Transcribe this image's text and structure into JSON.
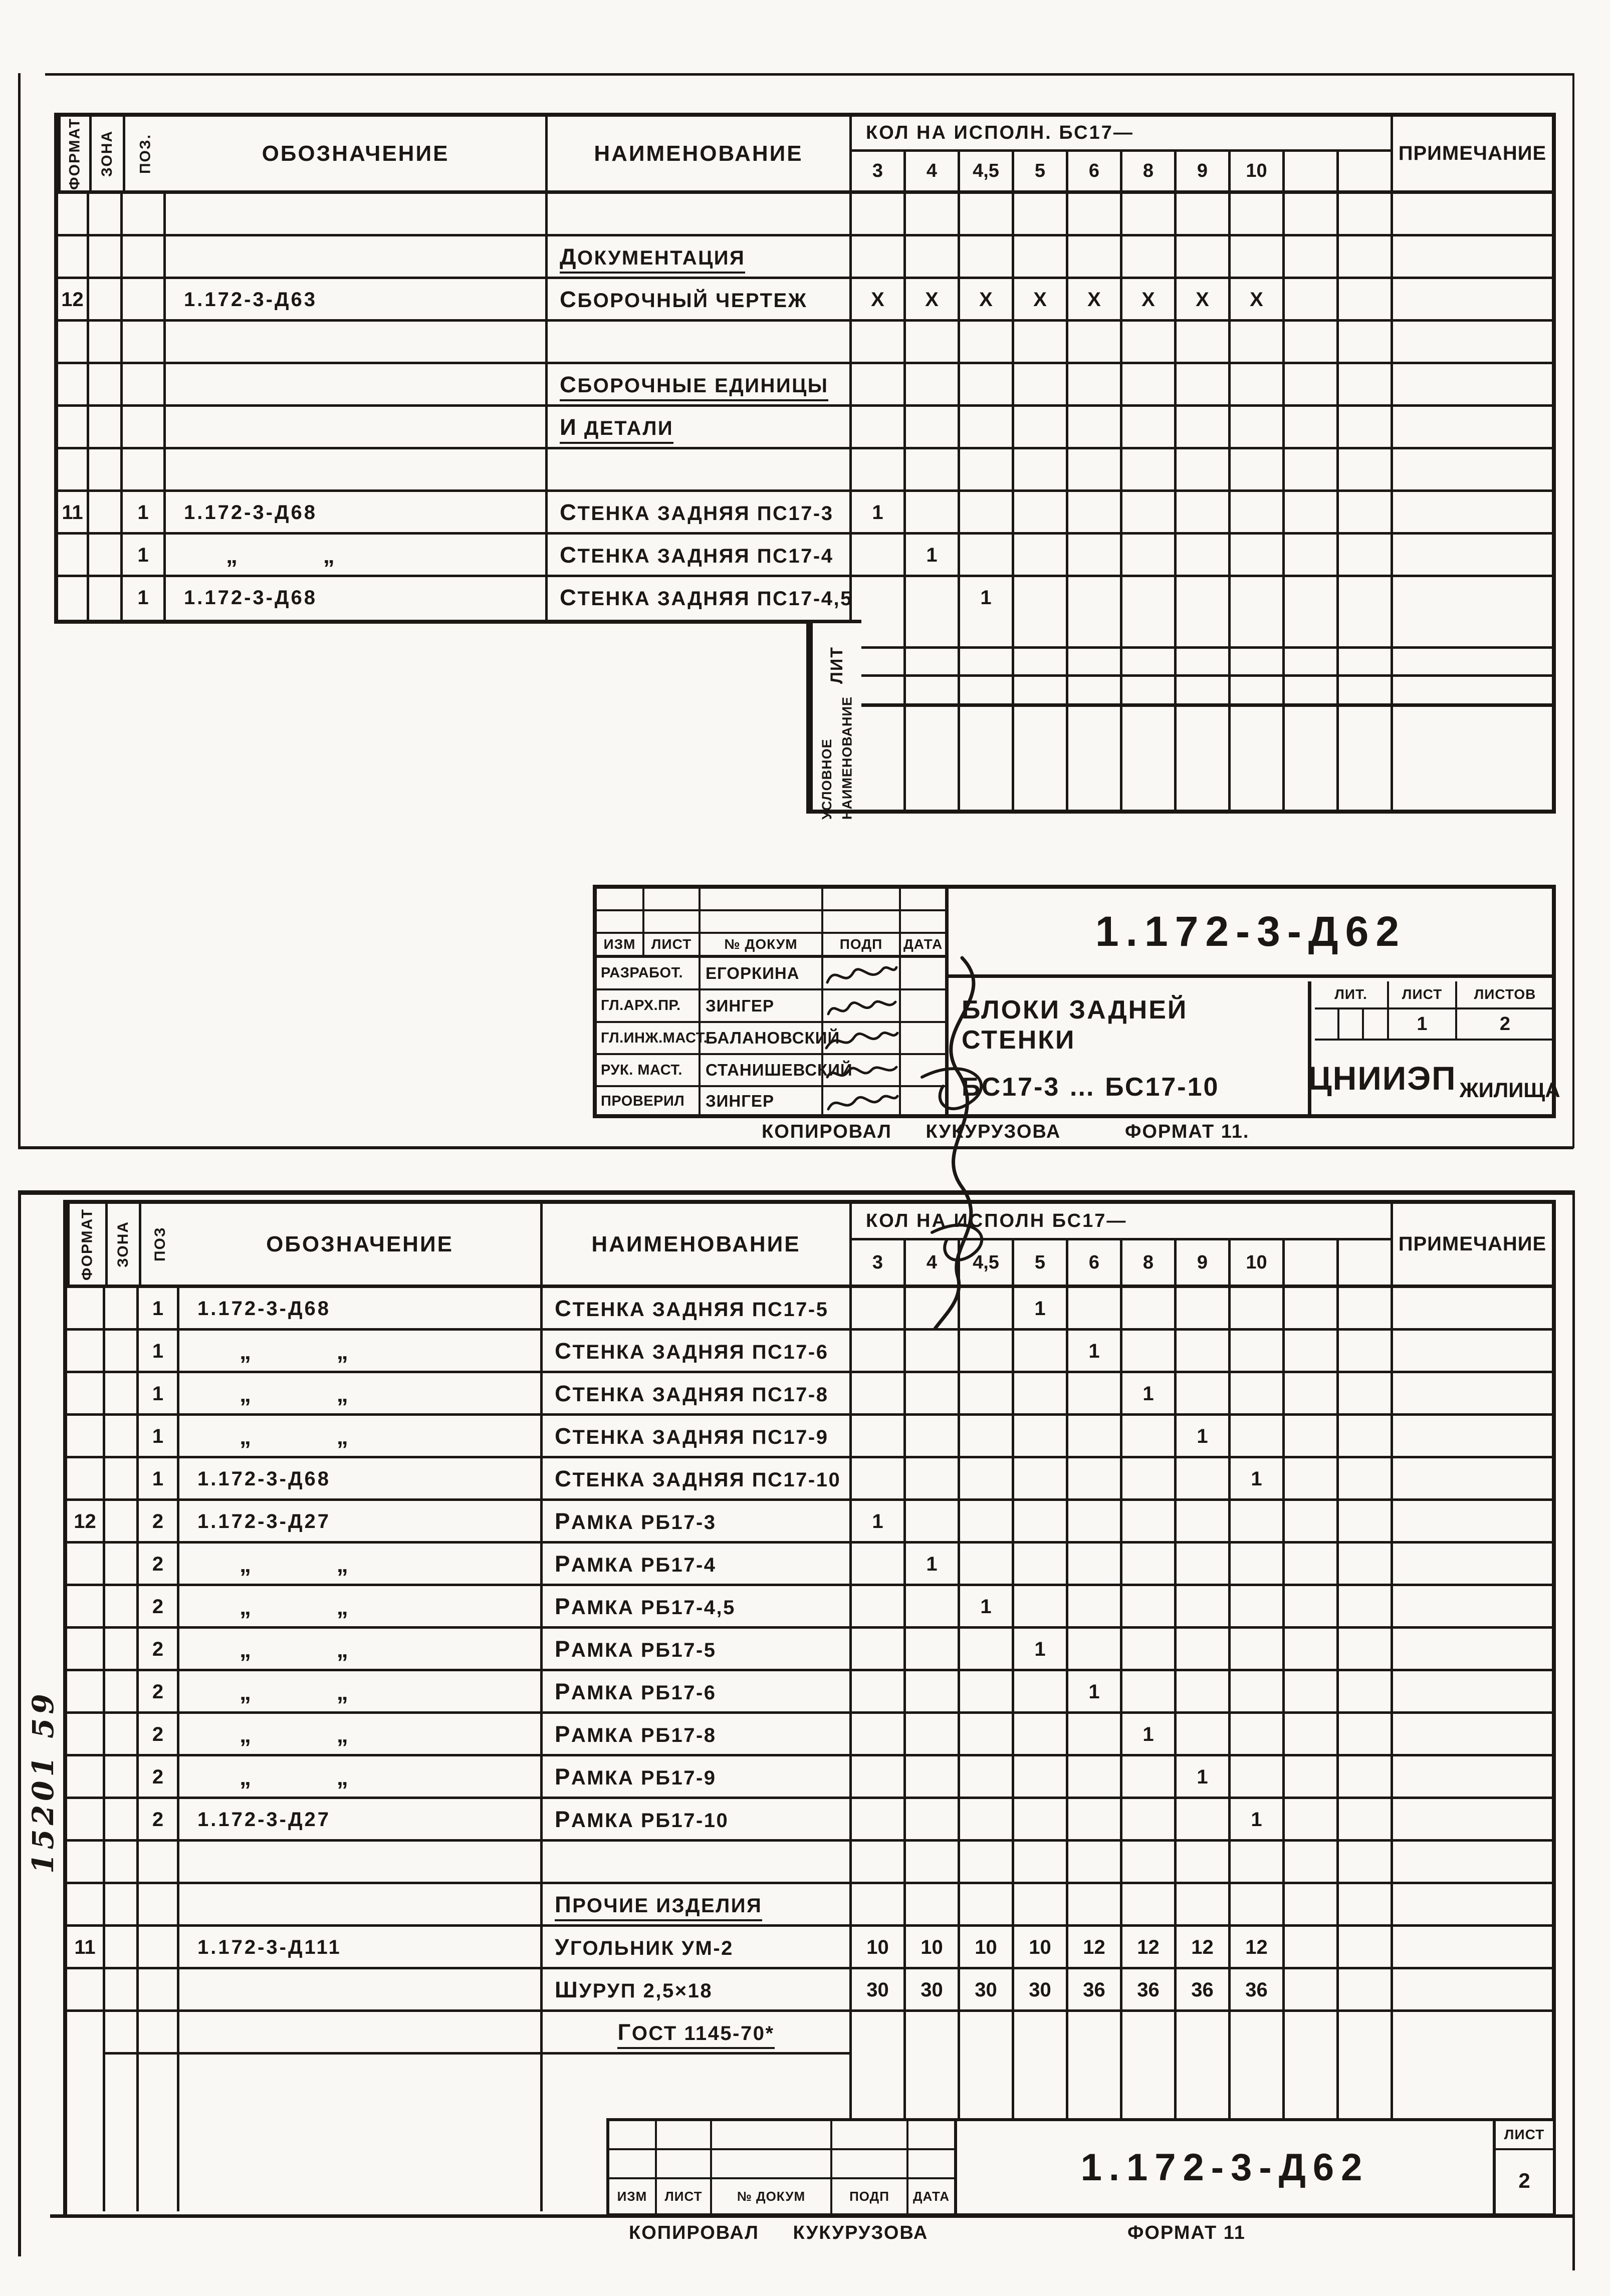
{
  "colors": {
    "ink": "#1b1713",
    "paper": "#f9f8f4"
  },
  "sheet1": {
    "header": {
      "format": "Формат",
      "zone": "Зона",
      "pos": "Поз.",
      "designation": "Обозначение",
      "name": "Наименование",
      "qty_title": "Кол на исполн. БС17—",
      "qty_cols": [
        "3",
        "4",
        "4,5",
        "5",
        "6",
        "8",
        "9",
        "10",
        "",
        ""
      ],
      "note": "Примечание"
    },
    "rows": [
      {},
      {
        "n": "Документация",
        "u": true
      },
      {
        "f": "12",
        "d": "1.172-3-Д63",
        "n": "Сборочный чертеж",
        "q": [
          "х",
          "х",
          "х",
          "х",
          "х",
          "х",
          "х",
          "х",
          "",
          ""
        ]
      },
      {},
      {
        "n": "Сборочные единицы",
        "u": true
      },
      {
        "n": "и детали",
        "u": true
      },
      {},
      {
        "f": "11",
        "p": "1",
        "d": "1.172-3-Д68",
        "n": "Стенка задняя ПС17-3",
        "q": [
          "1",
          "",
          "",
          "",
          "",
          "",
          "",
          "",
          "",
          ""
        ]
      },
      {
        "p": "1",
        "d": "„ „",
        "ditto": true,
        "n": "Стенка задняя ПС17-4",
        "q": [
          "",
          "1",
          "",
          "",
          "",
          "",
          "",
          "",
          "",
          ""
        ]
      },
      {
        "p": "1",
        "d": "1.172-3-Д68",
        "n": "Стенка задняя ПС17-4,5",
        "q": [
          "",
          "",
          "1",
          "",
          "",
          "",
          "",
          "",
          "",
          ""
        ]
      }
    ],
    "lit": {
      "label": "Лит",
      "usl": "Условное наименование"
    },
    "stamp": {
      "doc_number": "1.172-3-Д62",
      "cols": [
        "Изм",
        "Лист",
        "№ докум",
        "Подп",
        "Дата"
      ],
      "roles": [
        {
          "role": "Разработ.",
          "name": "Егоркина"
        },
        {
          "role": "Гл.арх.пр.",
          "name": "Зингер"
        },
        {
          "role": "Гл.инж.маст.",
          "name": "Балановский"
        },
        {
          "role": "Рук. маст.",
          "name": "Станишевский"
        },
        {
          "role": "Проверил",
          "name": "Зингер"
        }
      ],
      "title_line1": "Блоки задней стенки",
      "title_line2": "БС17-3 … БС17-10",
      "lit_h": "Лит.",
      "list_h": "Лист",
      "listov_h": "Листов",
      "list_v": "1",
      "listov_v": "2",
      "org_main": "ЦНИИЭП",
      "org_sub": "жилища"
    },
    "footer": {
      "copied_label": "Копировал",
      "copied_name": "Кукурузова",
      "format": "Формат 11."
    }
  },
  "sheet2": {
    "header": {
      "format": "Формат",
      "zone": "Зона",
      "pos": "Поз",
      "designation": "Обозначение",
      "name": "Наименование",
      "qty_title": "Кол на исполн БС17—",
      "qty_cols": [
        "3",
        "4",
        "4,5",
        "5",
        "6",
        "8",
        "9",
        "10",
        "",
        ""
      ],
      "note": "Примечание"
    },
    "rows": [
      {
        "p": "1",
        "d": "1.172-3-Д68",
        "n": "Стенка задняя ПС17-5",
        "q": [
          "",
          "",
          "",
          "1",
          "",
          "",
          "",
          "",
          "",
          ""
        ]
      },
      {
        "p": "1",
        "d": "„ „",
        "ditto": true,
        "n": "Стенка задняя ПС17-6",
        "q": [
          "",
          "",
          "",
          "",
          "1",
          "",
          "",
          "",
          "",
          ""
        ]
      },
      {
        "p": "1",
        "d": "„ „",
        "ditto": true,
        "n": "Стенка задняя ПС17-8",
        "q": [
          "",
          "",
          "",
          "",
          "",
          "1",
          "",
          "",
          "",
          ""
        ]
      },
      {
        "p": "1",
        "d": "„ „",
        "ditto": true,
        "n": "Стенка задняя ПС17-9",
        "q": [
          "",
          "",
          "",
          "",
          "",
          "",
          "1",
          "",
          "",
          ""
        ]
      },
      {
        "p": "1",
        "d": "1.172-3-Д68",
        "n": "Стенка задняя ПС17-10",
        "q": [
          "",
          "",
          "",
          "",
          "",
          "",
          "",
          "1",
          "",
          ""
        ]
      },
      {
        "f": "12",
        "p": "2",
        "d": "1.172-3-Д27",
        "n": "Рамка РБ17-3",
        "q": [
          "1",
          "",
          "",
          "",
          "",
          "",
          "",
          "",
          "",
          ""
        ]
      },
      {
        "p": "2",
        "d": "„ „",
        "ditto": true,
        "n": "Рамка РБ17-4",
        "q": [
          "",
          "1",
          "",
          "",
          "",
          "",
          "",
          "",
          "",
          ""
        ]
      },
      {
        "p": "2",
        "d": "„ „",
        "ditto": true,
        "n": "Рамка РБ17-4,5",
        "q": [
          "",
          "",
          "1",
          "",
          "",
          "",
          "",
          "",
          "",
          ""
        ]
      },
      {
        "p": "2",
        "d": "„ „",
        "ditto": true,
        "n": "Рамка РБ17-5",
        "q": [
          "",
          "",
          "",
          "1",
          "",
          "",
          "",
          "",
          "",
          ""
        ]
      },
      {
        "p": "2",
        "d": "„ „",
        "ditto": true,
        "n": "Рамка РБ17-6",
        "q": [
          "",
          "",
          "",
          "",
          "1",
          "",
          "",
          "",
          "",
          ""
        ]
      },
      {
        "p": "2",
        "d": "„ „",
        "ditto": true,
        "n": "Рамка РБ17-8",
        "q": [
          "",
          "",
          "",
          "",
          "",
          "1",
          "",
          "",
          "",
          ""
        ]
      },
      {
        "p": "2",
        "d": "„ „",
        "ditto": true,
        "n": "Рамка РБ17-9",
        "q": [
          "",
          "",
          "",
          "",
          "",
          "",
          "1",
          "",
          "",
          ""
        ]
      },
      {
        "p": "2",
        "d": "1.172-3-Д27",
        "n": "Рамка РБ17-10",
        "q": [
          "",
          "",
          "",
          "",
          "",
          "",
          "",
          "1",
          "",
          ""
        ]
      },
      {},
      {
        "n": "Прочие изделия",
        "u": true
      },
      {
        "f": "11",
        "d": "1.172-3-Д111",
        "n": "Угольник УМ-2",
        "q": [
          "10",
          "10",
          "10",
          "10",
          "12",
          "12",
          "12",
          "12",
          "",
          ""
        ]
      },
      {
        "n": "Шуруп 2,5×18",
        "q": [
          "30",
          "30",
          "30",
          "30",
          "36",
          "36",
          "36",
          "36",
          "",
          ""
        ]
      },
      {
        "n": "ГОСТ 1145-70*",
        "u": true,
        "gost": true,
        "pl": true
      },
      {
        "nb": true
      }
    ],
    "margin_note": "15201 59",
    "stamp": {
      "doc_number": "1.172-3-Д62",
      "cols": [
        "Изм",
        "Лист",
        "№ докум",
        "Подп",
        "Дата"
      ],
      "list_h": "Лист",
      "list_v": "2"
    },
    "footer": {
      "copied_label": "Копировал",
      "copied_name": "Кукурузова",
      "format": "Формат 11"
    }
  }
}
